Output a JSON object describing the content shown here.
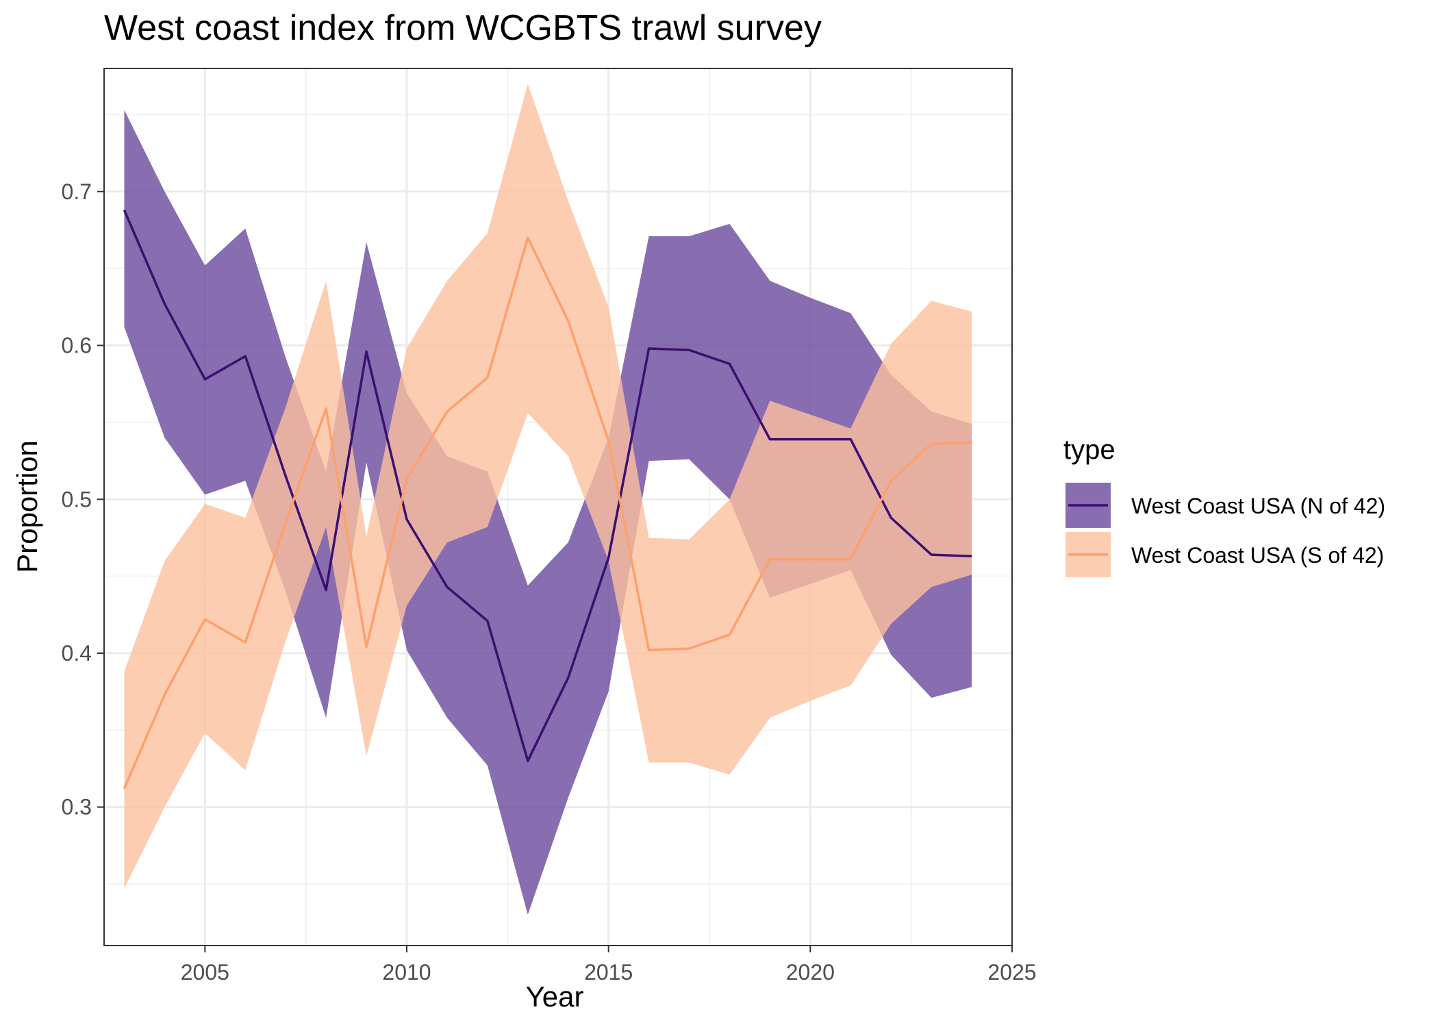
{
  "chart_data": {
    "type": "line",
    "title": "West coast index from WCGBTS trawl survey",
    "xlabel": "Year",
    "ylabel": "Proportion",
    "xlim": [
      2002.5,
      2025
    ],
    "ylim": [
      0.21,
      0.78
    ],
    "x_ticks": [
      2005,
      2010,
      2015,
      2020,
      2025
    ],
    "y_ticks": [
      0.3,
      0.4,
      0.5,
      0.6,
      0.7
    ],
    "grid": true,
    "legend": {
      "title": "type",
      "placement": "right"
    },
    "x": [
      2003,
      2004,
      2005,
      2006,
      2007,
      2008,
      2009,
      2010,
      2011,
      2012,
      2013,
      2014,
      2015,
      2016,
      2017,
      2018,
      2019,
      2020,
      2021,
      2022,
      2023,
      2024
    ],
    "series": [
      {
        "name": "West Coast USA (N of 42)",
        "color": "#3b0f70",
        "band_color": "#6a4a9c",
        "values": [
          0.688,
          0.627,
          0.578,
          0.593,
          0.515,
          0.441,
          0.596,
          0.487,
          0.443,
          0.421,
          0.33,
          0.384,
          0.462,
          0.598,
          0.597,
          0.588,
          0.539,
          0.539,
          0.539,
          0.488,
          0.464,
          0.463
        ],
        "lower": [
          0.612,
          0.54,
          0.503,
          0.512,
          0.44,
          0.358,
          0.524,
          0.402,
          0.358,
          0.327,
          0.23,
          0.306,
          0.375,
          0.525,
          0.526,
          0.5,
          0.436,
          0.445,
          0.454,
          0.399,
          0.371,
          0.378
        ],
        "upper": [
          0.753,
          0.7,
          0.652,
          0.676,
          0.592,
          0.518,
          0.667,
          0.569,
          0.528,
          0.518,
          0.444,
          0.472,
          0.54,
          0.671,
          0.671,
          0.679,
          0.642,
          0.631,
          0.621,
          0.581,
          0.557,
          0.549
        ]
      },
      {
        "name": "West Coast USA (S of 42)",
        "color": "#fca06e",
        "band_color": "#fdc09f",
        "values": [
          0.312,
          0.373,
          0.422,
          0.407,
          0.485,
          0.559,
          0.404,
          0.513,
          0.557,
          0.579,
          0.67,
          0.616,
          0.538,
          0.402,
          0.403,
          0.412,
          0.461,
          0.461,
          0.461,
          0.512,
          0.536,
          0.537
        ],
        "lower": [
          0.247,
          0.3,
          0.348,
          0.324,
          0.408,
          0.482,
          0.333,
          0.431,
          0.472,
          0.482,
          0.556,
          0.528,
          0.46,
          0.329,
          0.329,
          0.321,
          0.358,
          0.369,
          0.379,
          0.419,
          0.443,
          0.451
        ],
        "upper": [
          0.388,
          0.46,
          0.497,
          0.488,
          0.56,
          0.642,
          0.476,
          0.598,
          0.642,
          0.673,
          0.77,
          0.694,
          0.625,
          0.475,
          0.474,
          0.5,
          0.564,
          0.555,
          0.546,
          0.601,
          0.629,
          0.622
        ]
      }
    ]
  }
}
